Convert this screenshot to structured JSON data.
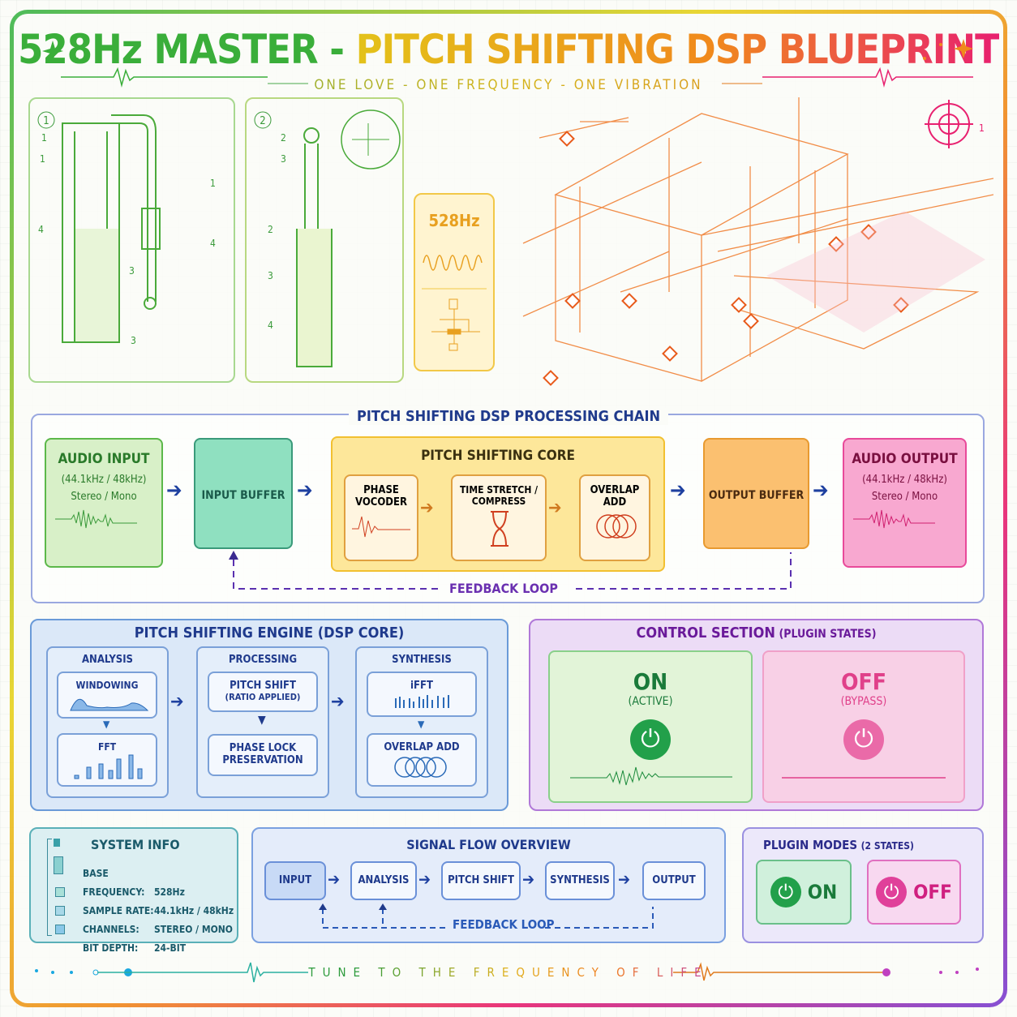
{
  "header": {
    "title_part1": "528Hz MASTER - ",
    "title_part2": "PITCH SHIFTING DSP BLUEPRINT",
    "subtitle": "ONE LOVE - ONE FREQUENCY - ONE VIBRATION"
  },
  "blueprint": {
    "panel1": {
      "number": "1",
      "labels": [
        "1",
        "1",
        "1",
        "4",
        "4",
        "3",
        "3"
      ]
    },
    "panel2": {
      "number": "2",
      "labels": [
        "2",
        "3",
        "2",
        "3",
        "4"
      ]
    },
    "freq_box": {
      "label": "528Hz"
    },
    "target_label": "1"
  },
  "chain": {
    "title": "PITCH SHIFTING DSP PROCESSING CHAIN",
    "audio_input": {
      "title": "AUDIO INPUT",
      "rate": "(44.1kHz / 48kHz)",
      "channels": "Stereo / Mono"
    },
    "input_buffer": "INPUT BUFFER",
    "core": {
      "title": "PITCH SHIFTING CORE",
      "steps": [
        "PHASE VOCODER",
        "TIME STRETCH / COMPRESS",
        "OVERLAP ADD"
      ]
    },
    "output_buffer": "OUTPUT BUFFER",
    "audio_output": {
      "title": "AUDIO OUTPUT",
      "rate": "(44.1kHz / 48kHz)",
      "channels": "Stereo / Mono"
    },
    "feedback": "FEEDBACK LOOP"
  },
  "engine": {
    "title": "PITCH SHIFTING ENGINE (DSP CORE)",
    "analysis": {
      "title": "ANALYSIS",
      "a": "WINDOWING",
      "b": "FFT"
    },
    "processing": {
      "title": "PROCESSING",
      "a": "PITCH SHIFT",
      "a_sub": "(RATIO APPLIED)",
      "b": "PHASE LOCK PRESERVATION"
    },
    "synthesis": {
      "title": "SYNTHESIS",
      "a": "iFFT",
      "b": "OVERLAP ADD"
    }
  },
  "control": {
    "title": "CONTROL SECTION",
    "title_sub": "(PLUGIN STATES)",
    "on": {
      "label": "ON",
      "state": "(ACTIVE)",
      "color": "#22a04a"
    },
    "off": {
      "label": "OFF",
      "state": "(BYPASS)",
      "color": "#e8408a"
    }
  },
  "system_info": {
    "title": "SYSTEM INFO",
    "rows": [
      {
        "k": "BASE FREQUENCY:",
        "v": "528Hz"
      },
      {
        "k": "SAMPLE RATE:",
        "v": "44.1kHz / 48kHz"
      },
      {
        "k": "CHANNELS:",
        "v": "STEREO / MONO"
      },
      {
        "k": "BIT DEPTH:",
        "v": "24-BIT"
      }
    ]
  },
  "signal_flow": {
    "title": "SIGNAL FLOW OVERVIEW",
    "steps": [
      "INPUT",
      "ANALYSIS",
      "PITCH SHIFT",
      "SYNTHESIS",
      "OUTPUT"
    ],
    "feedback": "FEEDBACK LOOP"
  },
  "plugin_modes": {
    "title": "PLUGIN MODES",
    "title_sub": "(2 STATES)",
    "on": "ON",
    "off": "OFF"
  },
  "footer": {
    "tagline": "TUNE TO THE FREQUENCY OF LIFE"
  }
}
